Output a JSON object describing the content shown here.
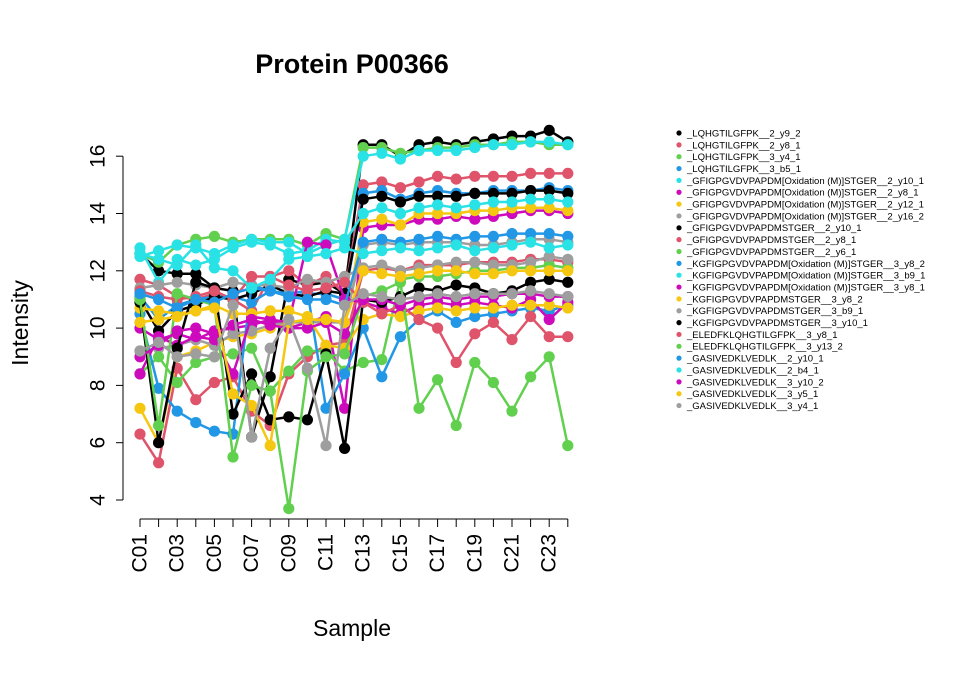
{
  "chart_data": {
    "type": "line",
    "title": "Protein P00366",
    "xlabel": "Sample",
    "ylabel": "Intensity",
    "x": [
      "C01",
      "C02",
      "C03",
      "C04",
      "C05",
      "C06",
      "C07",
      "C08",
      "C09",
      "C10",
      "C11",
      "C12",
      "C13",
      "C14",
      "C15",
      "C16",
      "C17",
      "C18",
      "C19",
      "C20",
      "C21",
      "C22",
      "C23",
      "C24"
    ],
    "x_tick_labels": [
      "C01",
      "C03",
      "C05",
      "C07",
      "C09",
      "C11",
      "C13",
      "C15",
      "C17",
      "C19",
      "C21",
      "C23"
    ],
    "ylim": [
      4,
      16.5
    ],
    "y_ticks": [
      4,
      6,
      8,
      10,
      12,
      14,
      16
    ],
    "legend_position": "right",
    "grid": false,
    "series": [
      {
        "name": "_LQHGTILGFPK__2_y9_2",
        "color": "#000000",
        "values": [
          12.6,
          12.0,
          11.9,
          11.9,
          11.4,
          11.3,
          6.2,
          8.3,
          11.7,
          11.5,
          11.6,
          11.2,
          16.4,
          16.4,
          16.0,
          16.4,
          16.5,
          16.4,
          16.5,
          16.6,
          16.7,
          16.7,
          16.9,
          16.5
        ]
      },
      {
        "name": "_LQHGTILGFPK__2_y8_1",
        "color": "#DF536B",
        "values": [
          11.7,
          11.5,
          11.1,
          11.0,
          11.2,
          11.0,
          10.6,
          11.8,
          12.0,
          11.5,
          11.8,
          11.2,
          15.0,
          15.1,
          14.9,
          15.1,
          15.3,
          15.2,
          15.3,
          15.3,
          15.3,
          15.4,
          15.4,
          15.4
        ]
      },
      {
        "name": "_LQHGTILGFPK__3_y4_1",
        "color": "#61D04F",
        "values": [
          12.6,
          12.3,
          12.9,
          13.1,
          13.2,
          13.0,
          13.1,
          13.1,
          13.1,
          12.9,
          13.3,
          13.1,
          16.3,
          16.3,
          16.1,
          16.2,
          16.3,
          16.3,
          16.4,
          16.4,
          16.5,
          16.5,
          16.4,
          16.4
        ]
      },
      {
        "name": "_LQHGTILGFPK__3_b5_1",
        "color": "#2297E6",
        "values": [
          11.1,
          10.3,
          10.8,
          11.0,
          11.1,
          11.1,
          10.9,
          11.3,
          11.1,
          11.2,
          11.2,
          11.0,
          14.7,
          14.8,
          14.5,
          14.7,
          14.8,
          14.7,
          14.7,
          14.8,
          14.8,
          14.8,
          14.9,
          14.8
        ]
      },
      {
        "name": "_GFIGPGVDVPAPDM[Oxidation (M)]STGER__2_y10_1",
        "color": "#28E2E5",
        "values": [
          12.5,
          12.7,
          12.9,
          12.8,
          12.6,
          12.9,
          13.1,
          13.0,
          13.0,
          12.6,
          12.9,
          13.1,
          16.0,
          16.1,
          15.9,
          16.2,
          16.2,
          16.2,
          16.3,
          16.4,
          16.4,
          16.5,
          16.5,
          16.4
        ]
      },
      {
        "name": "_GFIGPGVDVPAPDM[Oxidation (M)]STGER__2_y8_1",
        "color": "#CD0BBC",
        "values": [
          10.0,
          9.6,
          9.8,
          9.6,
          9.9,
          10.0,
          10.1,
          10.3,
          10.0,
          10.2,
          10.4,
          7.2,
          13.5,
          13.6,
          13.6,
          13.8,
          13.8,
          13.9,
          13.8,
          13.9,
          14.0,
          14.1,
          14.1,
          14.0
        ]
      },
      {
        "name": "_GFIGPGVDVPAPDM[Oxidation (M)]STGER__2_y12_1",
        "color": "#F5C710",
        "values": [
          7.2,
          6.0,
          9.0,
          9.2,
          9.5,
          9.7,
          9.8,
          10.0,
          10.2,
          10.2,
          10.3,
          10.2,
          13.7,
          13.8,
          13.6,
          14.0,
          14.0,
          14.0,
          14.1,
          14.1,
          14.2,
          14.2,
          14.2,
          14.1
        ]
      },
      {
        "name": "_GFIGPGVDVPAPDM[Oxidation (M)]STGER__2_y16_2",
        "color": "#9E9E9E",
        "values": [
          9.2,
          9.3,
          9.4,
          9.6,
          9.4,
          9.8,
          9.9,
          10.1,
          10.2,
          10.2,
          10.2,
          10.2,
          12.9,
          13.0,
          12.9,
          13.0,
          13.0,
          13.0,
          12.9,
          12.9,
          13.0,
          13.1,
          13.1,
          13.0
        ]
      },
      {
        "name": "_GFIGPGVDVPAPDMSTGER__2_y10_1",
        "color": "#000000",
        "values": [
          11.0,
          9.9,
          10.6,
          10.8,
          11.1,
          11.0,
          11.2,
          11.5,
          11.2,
          11.1,
          11.3,
          11.2,
          14.5,
          14.6,
          14.4,
          14.6,
          14.6,
          14.6,
          14.7,
          14.7,
          14.7,
          14.8,
          14.8,
          14.7
        ]
      },
      {
        "name": "_GFIGPGVDVPAPDMSTGER__2_y8_1",
        "color": "#DF536B",
        "values": [
          6.3,
          5.3,
          8.6,
          7.5,
          8.1,
          8.3,
          7.1,
          6.6,
          8.4,
          9.0,
          9.4,
          9.5,
          12.0,
          12.1,
          12.0,
          12.2,
          12.2,
          12.2,
          12.3,
          12.3,
          12.3,
          12.4,
          12.4,
          12.3
        ]
      },
      {
        "name": "_GFIGPGVDVPAPDMSTGER__2_y6_1",
        "color": "#61D04F",
        "values": [
          8.4,
          9.0,
          8.1,
          8.8,
          9.0,
          9.1,
          9.3,
          7.8,
          8.5,
          9.2,
          9.2,
          8.5,
          8.8,
          8.9,
          11.7,
          11.8,
          11.8,
          11.9,
          12.0,
          12.0,
          12.1,
          12.1,
          12.2,
          12.1
        ]
      },
      {
        "name": "_KGFIGPGVDVPAPDM[Oxidation (M)]STGER__3_y8_2",
        "color": "#2297E6",
        "values": [
          10.5,
          7.9,
          7.1,
          6.7,
          6.4,
          6.3,
          11.5,
          11.3,
          11.2,
          11.3,
          7.2,
          8.4,
          10.0,
          8.3,
          9.7,
          10.3,
          10.6,
          10.2,
          10.4,
          10.5,
          10.6,
          10.7,
          10.6,
          10.8
        ]
      },
      {
        "name": "_KGFIGPGVDVPAPDM[Oxidation (M)]STGER__3_b9_1",
        "color": "#28E2E5",
        "values": [
          12.8,
          11.6,
          12.4,
          12.2,
          12.4,
          12.8,
          13.0,
          12.9,
          12.6,
          12.7,
          13.1,
          13.0,
          14.0,
          14.2,
          14.0,
          14.2,
          14.3,
          14.2,
          14.3,
          14.4,
          14.4,
          14.5,
          14.5,
          14.4
        ]
      },
      {
        "name": "_KGFIGPGVDVPAPDM[Oxidation (M)]STGER__3_y8_1",
        "color": "#CD0BBC",
        "values": [
          8.4,
          9.7,
          9.4,
          9.7,
          9.6,
          8.4,
          10.4,
          10.3,
          10.2,
          13.0,
          12.9,
          11.0,
          10.9,
          10.7,
          10.5,
          10.8,
          10.9,
          10.8,
          10.9,
          10.8,
          10.7,
          11.0,
          10.3,
          10.9
        ]
      },
      {
        "name": "_KGFIGPGVDVPAPDMSTGER__3_y8_2",
        "color": "#F5C710",
        "values": [
          10.7,
          10.6,
          10.5,
          10.6,
          10.8,
          10.5,
          10.5,
          10.6,
          10.6,
          10.4,
          9.4,
          9.3,
          10.3,
          10.5,
          10.4,
          10.6,
          10.7,
          10.6,
          10.7,
          10.7,
          10.8,
          10.8,
          10.8,
          10.7
        ]
      },
      {
        "name": "_KGFIGPGVDVPAPDMSTGER__3_b9_1",
        "color": "#9E9E9E",
        "values": [
          11.4,
          11.5,
          11.6,
          11.5,
          11.4,
          11.6,
          11.5,
          11.5,
          11.4,
          11.7,
          11.6,
          11.8,
          12.1,
          12.2,
          12.0,
          12.1,
          12.2,
          12.3,
          12.3,
          12.2,
          12.2,
          12.3,
          12.5,
          12.4
        ]
      },
      {
        "name": "_KGFIGPGVDVPAPDMSTGER__3_y10_1",
        "color": "#000000",
        "values": [
          10.9,
          6.0,
          9.3,
          11.6,
          11.4,
          7.0,
          8.4,
          6.8,
          6.9,
          6.8,
          9.1,
          5.8,
          11.0,
          10.9,
          11.1,
          11.4,
          11.3,
          11.5,
          11.4,
          11.2,
          11.3,
          11.6,
          11.7,
          11.6
        ]
      },
      {
        "name": "_ELEDFKLQHGTILGFPK__3_y8_1",
        "color": "#DF536B",
        "values": [
          11.3,
          11.1,
          11.0,
          11.1,
          11.3,
          11.0,
          11.8,
          11.8,
          11.5,
          11.3,
          11.4,
          11.6,
          10.9,
          10.5,
          10.8,
          10.3,
          10.0,
          8.8,
          9.8,
          10.2,
          9.6,
          10.4,
          9.7,
          9.7
        ]
      },
      {
        "name": "_ELEDFKLQHGTILGFPK__3_y13_2",
        "color": "#61D04F",
        "values": [
          11.0,
          6.6,
          11.2,
          11.0,
          10.8,
          5.5,
          8.0,
          7.8,
          3.7,
          8.5,
          9.0,
          9.1,
          11.1,
          11.3,
          11.6,
          7.2,
          8.2,
          6.6,
          8.8,
          8.1,
          7.1,
          8.3,
          9.0,
          5.9
        ]
      },
      {
        "name": "_GASIVEDKLVEDLK__2_y10_1",
        "color": "#2297E6",
        "values": [
          11.2,
          11.0,
          10.7,
          11.0,
          10.9,
          11.2,
          11.4,
          11.3,
          11.1,
          11.0,
          11.0,
          10.8,
          13.0,
          13.1,
          13.0,
          13.1,
          13.2,
          13.1,
          13.2,
          13.2,
          13.3,
          13.3,
          13.3,
          13.2
        ]
      },
      {
        "name": "_GASIVEDKLVEDLK__2_b4_1",
        "color": "#28E2E5",
        "values": [
          12.6,
          12.4,
          12.2,
          12.9,
          12.1,
          12.0,
          11.4,
          11.7,
          12.4,
          12.5,
          12.6,
          12.8,
          12.6,
          12.7,
          12.8,
          12.7,
          12.8,
          12.9,
          12.7,
          12.8,
          12.9,
          13.0,
          12.8,
          12.9
        ]
      },
      {
        "name": "_GASIVEDKLVEDLK__3_y10_2",
        "color": "#CD0BBC",
        "values": [
          9.0,
          9.4,
          9.9,
          10.0,
          9.8,
          10.1,
          10.3,
          10.1,
          10.0,
          10.0,
          10.2,
          9.8,
          11.0,
          11.0,
          10.8,
          11.0,
          11.1,
          11.0,
          11.1,
          11.1,
          11.2,
          11.2,
          11.1,
          11.1
        ]
      },
      {
        "name": "_GASIVEDKLVEDLK__3_y5_1",
        "color": "#F5C710",
        "values": [
          10.2,
          10.3,
          10.4,
          10.6,
          10.7,
          7.7,
          7.3,
          5.9,
          10.2,
          10.3,
          10.3,
          10.2,
          12.0,
          11.9,
          11.8,
          11.9,
          12.0,
          12.0,
          11.9,
          11.9,
          12.0,
          12.0,
          12.0,
          12.0
        ]
      },
      {
        "name": "_GASIVEDKLVEDLK__3_y4_1",
        "color": "#9E9E9E",
        "values": [
          9.2,
          9.5,
          9.0,
          9.1,
          9.0,
          10.8,
          6.2,
          9.3,
          10.3,
          8.6,
          5.9,
          10.8,
          11.2,
          11.1,
          11.0,
          11.1,
          11.2,
          11.1,
          11.2,
          11.2,
          11.2,
          11.3,
          11.2,
          11.1
        ]
      }
    ]
  }
}
